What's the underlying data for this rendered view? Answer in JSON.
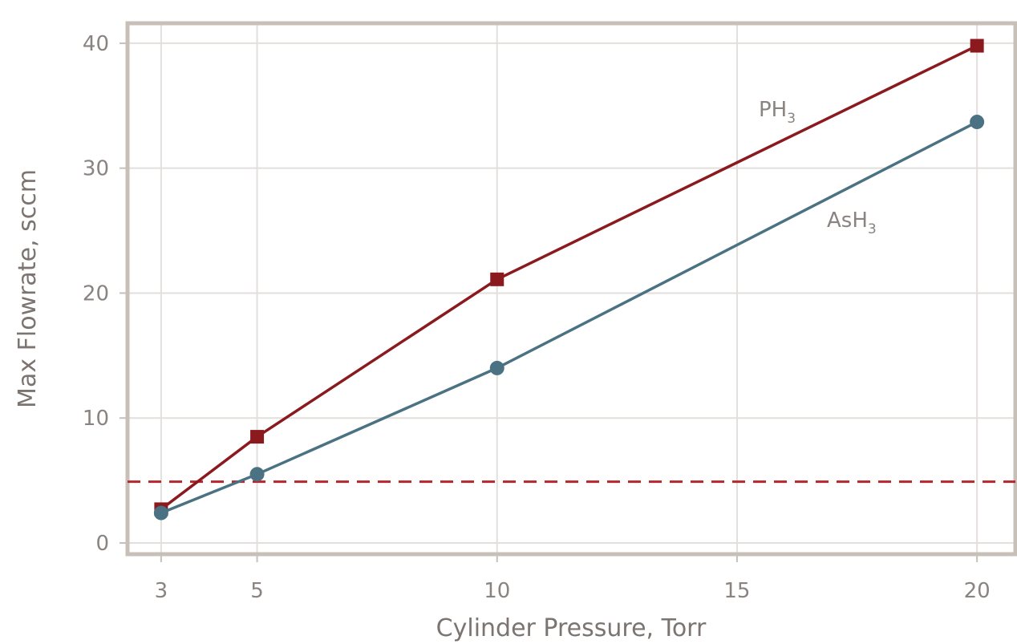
{
  "chart_data": {
    "type": "line",
    "title": "",
    "xlabel": "Cylinder Pressure, Torr",
    "ylabel": "Max Flowrate, sccm",
    "xlim": [
      2.3,
      20.8
    ],
    "ylim": [
      -0.9,
      41.6
    ],
    "xticks": [
      3,
      5,
      10,
      15,
      20
    ],
    "yticks": [
      0,
      10,
      20,
      30,
      40
    ],
    "grid": true,
    "x": [
      3,
      5,
      10,
      20
    ],
    "series": [
      {
        "name": "PH₃",
        "label_main": "PH",
        "label_sub": "3",
        "values": [
          2.7,
          8.5,
          21.1,
          39.8
        ],
        "marker": "square",
        "color": "#8b1a1f"
      },
      {
        "name": "AsH₃",
        "label_main": "AsH",
        "label_sub": "3",
        "values": [
          2.4,
          5.5,
          14.0,
          33.7
        ],
        "marker": "circle",
        "color": "#4a7283"
      }
    ],
    "reference_line": {
      "y": 4.9,
      "style": "dashed",
      "color": "#b5272d"
    },
    "colors": {
      "grid": "#e2dfdc",
      "frame": "#c7c0b8",
      "tick_text": "#8a8380",
      "axis_title": "#7b7470"
    }
  }
}
